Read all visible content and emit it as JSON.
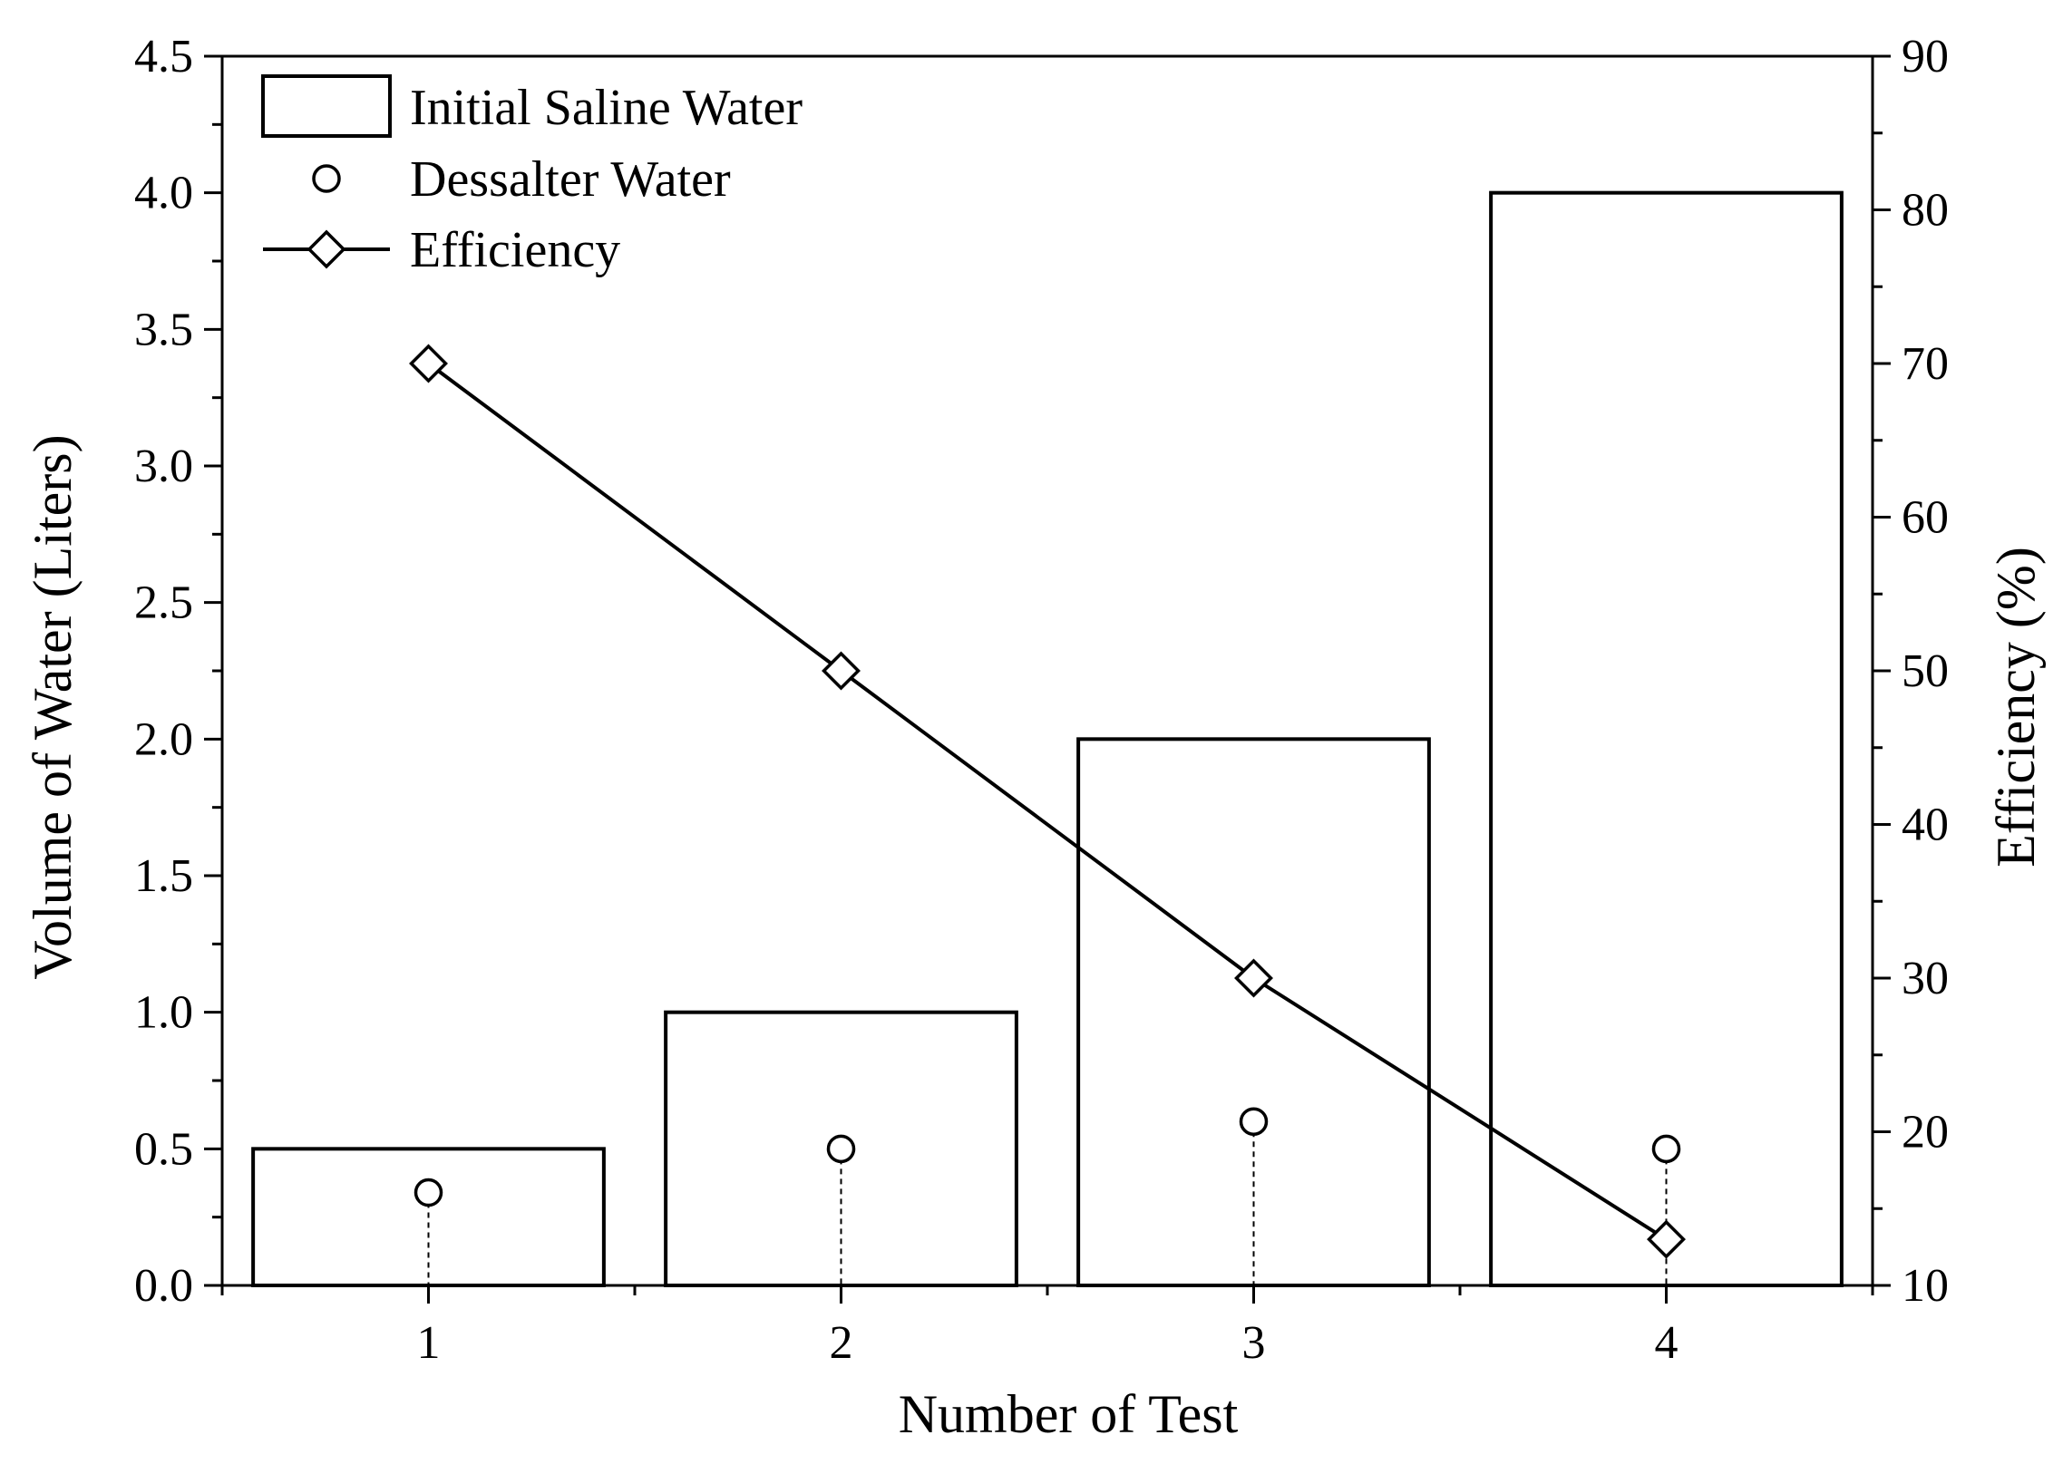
{
  "chart_data": {
    "type": "bar",
    "xlabel": "Number of Test",
    "ylabel": "Volume of Water (Liters)",
    "y2label": "Efficiency (%)",
    "categories": [
      "1",
      "2",
      "3",
      "4"
    ],
    "ylim": [
      0,
      4.5
    ],
    "y2lim": [
      10,
      90
    ],
    "y_ticks": [
      "0.0",
      "0.5",
      "1.0",
      "1.5",
      "2.0",
      "2.5",
      "3.0",
      "3.5",
      "4.0",
      "4.5"
    ],
    "y2_ticks": [
      "10",
      "20",
      "30",
      "40",
      "50",
      "60",
      "70",
      "80",
      "90"
    ],
    "grid": false,
    "legend_position": "top-left",
    "series": [
      {
        "name": "Initial Saline Water",
        "kind": "bar",
        "axis": "left",
        "values": [
          0.5,
          1.0,
          2.0,
          4.0
        ]
      },
      {
        "name": "Dessalter Water",
        "kind": "scatter-drop",
        "axis": "left",
        "marker": "circle",
        "values": [
          0.34,
          0.5,
          0.6,
          0.5
        ]
      },
      {
        "name": "Efficiency",
        "kind": "line",
        "axis": "right",
        "marker": "diamond",
        "values": [
          70,
          50,
          30,
          13
        ]
      }
    ],
    "colors": {
      "stroke": "#000000",
      "fill": "#ffffff"
    }
  }
}
